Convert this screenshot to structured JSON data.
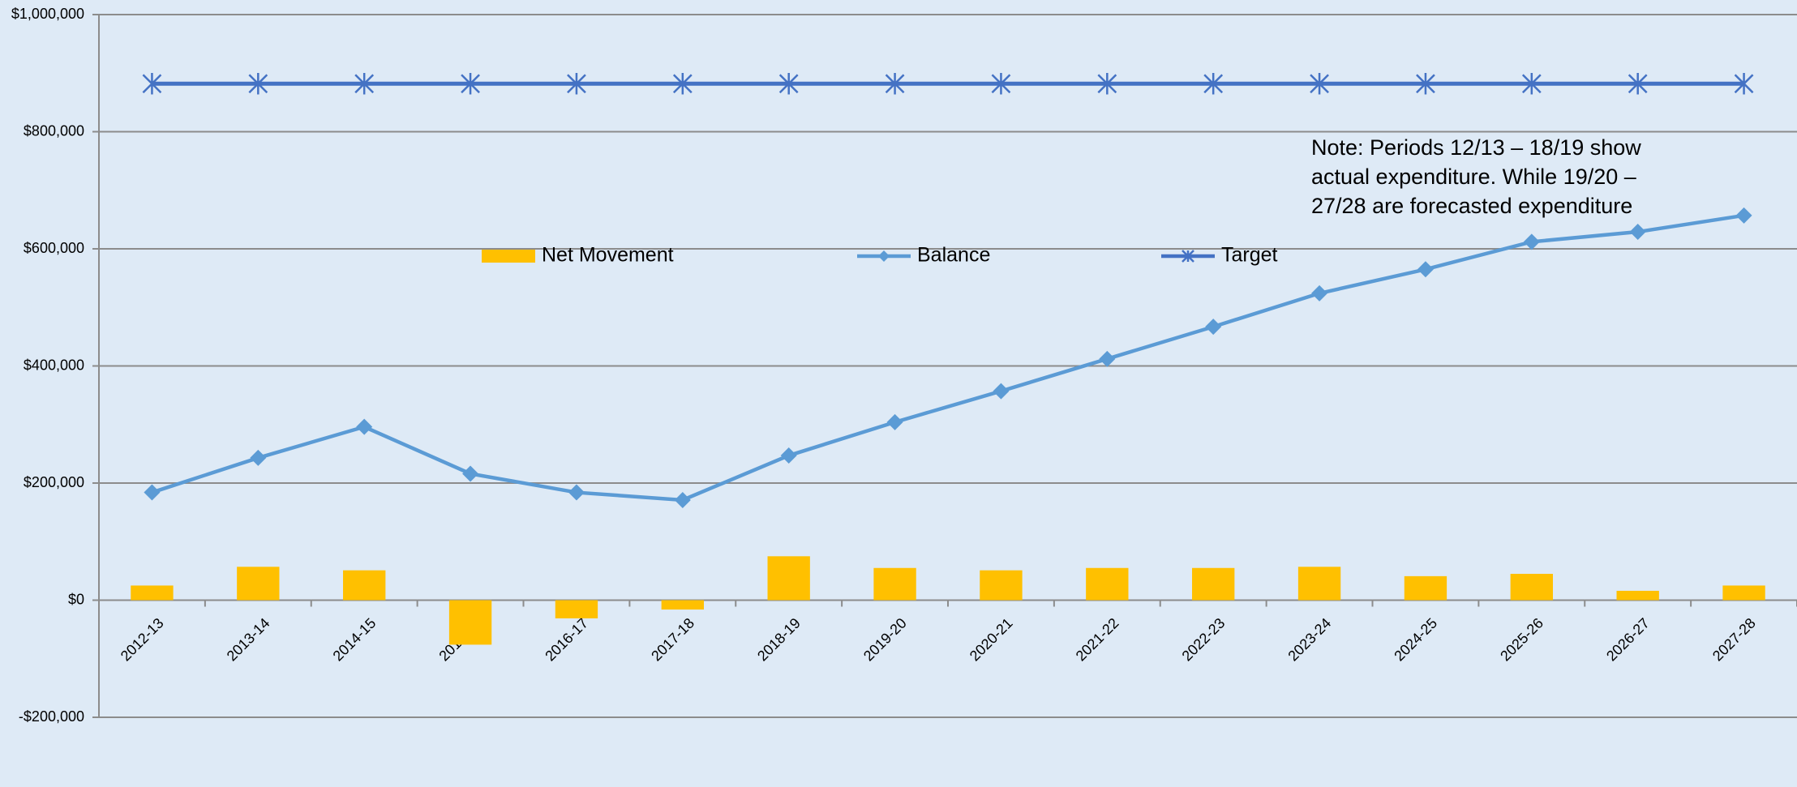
{
  "chart_data": {
    "type": "bar-line",
    "categories": [
      "2012-13",
      "2013-14",
      "2014-15",
      "2015-16",
      "2016-17",
      "2017-18",
      "2018-19",
      "2019-20",
      "2020-21",
      "2021-22",
      "2022-23",
      "2023-24",
      "2024-25",
      "2025-26",
      "2026-27",
      "2027-28"
    ],
    "series": [
      {
        "name": "Net Movement",
        "type": "bar",
        "color": "#ffc000",
        "values": [
          25000,
          57000,
          51000,
          -76000,
          -31000,
          -16000,
          75000,
          55000,
          51000,
          55000,
          55000,
          57000,
          41000,
          45000,
          16000,
          25000
        ]
      },
      {
        "name": "Balance",
        "type": "line",
        "marker": "diamond",
        "color": "#5b9bd5",
        "values": [
          184000,
          243000,
          296000,
          216000,
          184000,
          171000,
          247000,
          304000,
          357000,
          412000,
          467000,
          524000,
          565000,
          612000,
          629000,
          657000
        ]
      },
      {
        "name": "Target",
        "type": "line",
        "marker": "asterisk",
        "color": "#4472c4",
        "values": [
          882000,
          882000,
          882000,
          882000,
          882000,
          882000,
          882000,
          882000,
          882000,
          882000,
          882000,
          882000,
          882000,
          882000,
          882000,
          882000
        ]
      }
    ],
    "annotations": [
      "Note: Periods 12/13 – 18/19 show",
      "actual expenditure. While 19/20 –",
      "27/28 are forecasted  expenditure"
    ],
    "ylim": [
      -200000,
      1000000
    ],
    "yticks": [
      {
        "value": -200000,
        "label": "-$200,000"
      },
      {
        "value": 0,
        "label": "$0"
      },
      {
        "value": 200000,
        "label": "$200,000"
      },
      {
        "value": 400000,
        "label": "$400,000"
      },
      {
        "value": 600000,
        "label": "$600,000"
      },
      {
        "value": 800000,
        "label": "$800,000"
      },
      {
        "value": 1000000,
        "label": "$1,000,000"
      }
    ],
    "grid": true,
    "legend": "top"
  }
}
